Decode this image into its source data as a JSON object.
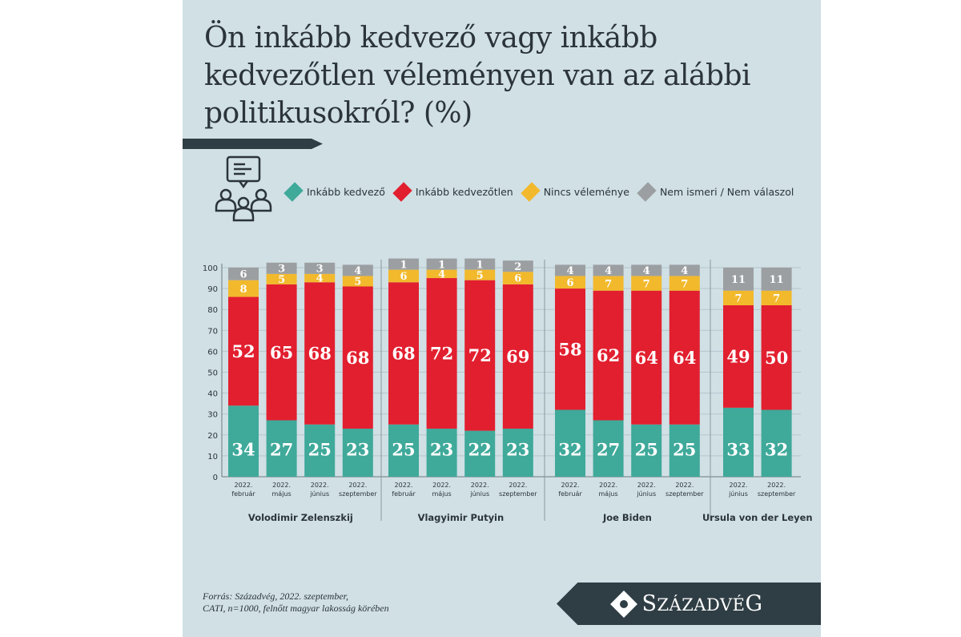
{
  "title": "Ön inkább kedvező vagy inkább kedvezőtlen véleményen van az alábbi politikusokról? (%)",
  "legend": [
    {
      "label": "Inkább kedvező",
      "color": "#3fa99a"
    },
    {
      "label": "Inkább kedvezőtlen",
      "color": "#e21f2f"
    },
    {
      "label": "Nincs véleménye",
      "color": "#f2b92c"
    },
    {
      "label": "Nem ismeri / Nem válaszol",
      "color": "#9c9fa2"
    }
  ],
  "footer": {
    "source_line1": "Forrás: Századvég, 2022. szeptember,",
    "source_line2": "CATI, n=1000, felnőtt magyar lakosság körében",
    "logo_text": "SZÁZADVÉG"
  },
  "chart_data": {
    "type": "bar",
    "stacked": true,
    "ylim": [
      0,
      100
    ],
    "yticks": [
      0,
      10,
      20,
      30,
      40,
      50,
      60,
      70,
      80,
      90,
      100
    ],
    "grid": true,
    "legend_position": "top",
    "series_names": [
      "Inkább kedvező",
      "Inkább kedvezőtlen",
      "Nincs véleménye",
      "Nem ismeri / Nem válaszol"
    ],
    "groups": [
      {
        "name": "Volodimir Zelenszkij",
        "bars": [
          {
            "year": "2022.",
            "month": "február",
            "values": [
              34,
              52,
              8,
              6
            ]
          },
          {
            "year": "2022.",
            "month": "május",
            "values": [
              27,
              65,
              5,
              3
            ]
          },
          {
            "year": "2022.",
            "month": "június",
            "values": [
              25,
              68,
              4,
              3
            ]
          },
          {
            "year": "2022.",
            "month": "szeptember",
            "values": [
              23,
              68,
              5,
              4
            ]
          }
        ]
      },
      {
        "name": "Vlagyimir Putyin",
        "bars": [
          {
            "year": "2022.",
            "month": "február",
            "values": [
              25,
              68,
              6,
              1
            ]
          },
          {
            "year": "2022.",
            "month": "május",
            "values": [
              23,
              72,
              4,
              1
            ]
          },
          {
            "year": "2022.",
            "month": "június",
            "values": [
              22,
              72,
              5,
              1
            ]
          },
          {
            "year": "2022.",
            "month": "szeptember",
            "values": [
              23,
              69,
              6,
              2
            ]
          }
        ]
      },
      {
        "name": "Joe Biden",
        "bars": [
          {
            "year": "2022.",
            "month": "február",
            "values": [
              32,
              58,
              6,
              4
            ]
          },
          {
            "year": "2022.",
            "month": "május",
            "values": [
              27,
              62,
              7,
              4
            ]
          },
          {
            "year": "2022.",
            "month": "június",
            "values": [
              25,
              64,
              7,
              4
            ]
          },
          {
            "year": "2022.",
            "month": "szeptember",
            "values": [
              25,
              64,
              7,
              4
            ]
          }
        ]
      },
      {
        "name": "Ursula von der Leyen",
        "bars": [
          {
            "year": "2022.",
            "month": "június",
            "values": [
              33,
              49,
              7,
              11
            ]
          },
          {
            "year": "2022.",
            "month": "szeptember",
            "values": [
              32,
              50,
              7,
              11
            ]
          }
        ]
      }
    ]
  }
}
